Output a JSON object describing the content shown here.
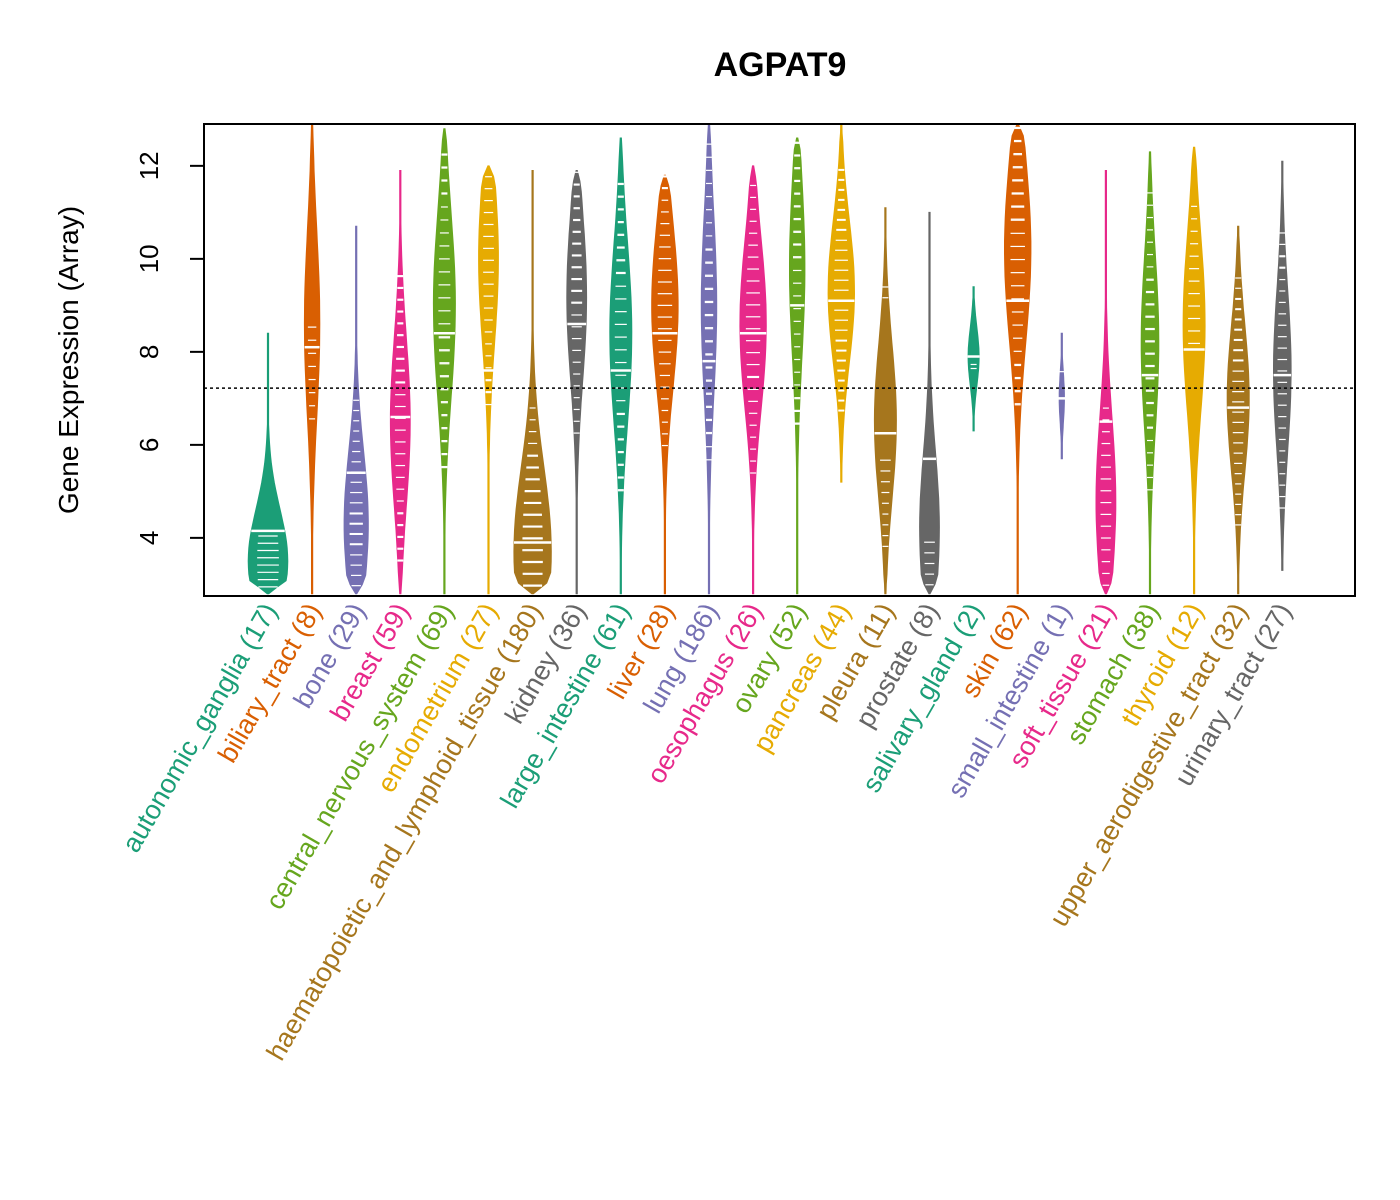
{
  "chart_data": {
    "type": "violin",
    "title": "AGPAT9",
    "xlabel": "",
    "ylabel": "Gene Expression (Array)",
    "ylim": [
      2.75,
      12.9
    ],
    "yticks": [
      4,
      6,
      8,
      10,
      12
    ],
    "reference_line": 7.22,
    "grid": false,
    "categories": [
      {
        "name": "autonomic_ganglia",
        "n": 17,
        "label": "autonomic_ganglia (17)",
        "color": "#1B9E77",
        "min": 2.8,
        "max": 8.4,
        "median": 4.15,
        "mode": 3.5,
        "width": 0.9
      },
      {
        "name": "biliary_tract",
        "n": 8,
        "label": "biliary_tract (8)",
        "color": "#D95F02",
        "min": 2.8,
        "max": 12.9,
        "median": 8.1,
        "mode": 8.6,
        "width": 0.35
      },
      {
        "name": "bone",
        "n": 29,
        "label": "bone (29)",
        "color": "#7570B3",
        "min": 2.8,
        "max": 10.7,
        "median": 5.4,
        "mode": 4.3,
        "width": 0.55
      },
      {
        "name": "breast",
        "n": 59,
        "label": "breast (59)",
        "color": "#E7298A",
        "min": 2.8,
        "max": 11.9,
        "median": 6.6,
        "mode": 6.5,
        "width": 0.45
      },
      {
        "name": "central_nervous_system",
        "n": 69,
        "label": "central_nervous_system (69)",
        "color": "#66A61E",
        "min": 2.8,
        "max": 12.8,
        "median": 8.4,
        "mode": 9.0,
        "width": 0.5
      },
      {
        "name": "endometrium",
        "n": 27,
        "label": "endometrium (27)",
        "color": "#E6AB02",
        "min": 2.8,
        "max": 12.0,
        "median": 7.6,
        "mode": 10.0,
        "width": 0.45
      },
      {
        "name": "haematopoietic_and_lymphoid_tissue",
        "n": 180,
        "label": "haematopoietic_and_lymphoid_tissue (180)",
        "color": "#A6761D",
        "min": 2.8,
        "max": 11.9,
        "median": 3.9,
        "mode": 3.7,
        "width": 0.85
      },
      {
        "name": "kidney",
        "n": 36,
        "label": "kidney (36)",
        "color": "#666666",
        "min": 2.8,
        "max": 11.9,
        "median": 8.6,
        "mode": 9.2,
        "width": 0.45
      },
      {
        "name": "large_intestine",
        "n": 61,
        "label": "large_intestine (61)",
        "color": "#1B9E77",
        "min": 2.8,
        "max": 12.6,
        "median": 7.6,
        "mode": 8.4,
        "width": 0.5
      },
      {
        "name": "liver",
        "n": 28,
        "label": "liver (28)",
        "color": "#D95F02",
        "min": 2.8,
        "max": 11.8,
        "median": 8.4,
        "mode": 9.0,
        "width": 0.6
      },
      {
        "name": "lung",
        "n": 186,
        "label": "lung (186)",
        "color": "#7570B3",
        "min": 2.8,
        "max": 12.9,
        "median": 7.8,
        "mode": 9.0,
        "width": 0.35
      },
      {
        "name": "oesophagus",
        "n": 26,
        "label": "oesophagus (26)",
        "color": "#E7298A",
        "min": 2.8,
        "max": 12.0,
        "median": 8.4,
        "mode": 8.6,
        "width": 0.6
      },
      {
        "name": "ovary",
        "n": 52,
        "label": "ovary (52)",
        "color": "#66A61E",
        "min": 2.8,
        "max": 12.6,
        "median": 9.0,
        "mode": 9.8,
        "width": 0.35
      },
      {
        "name": "pancreas",
        "n": 44,
        "label": "pancreas (44)",
        "color": "#E6AB02",
        "min": 5.2,
        "max": 12.9,
        "median": 9.1,
        "mode": 9.3,
        "width": 0.6
      },
      {
        "name": "pleura",
        "n": 11,
        "label": "pleura (11)",
        "color": "#A6761D",
        "min": 2.8,
        "max": 11.1,
        "median": 6.25,
        "mode": 6.5,
        "width": 0.5
      },
      {
        "name": "prostate",
        "n": 8,
        "label": "prostate (8)",
        "color": "#666666",
        "min": 2.8,
        "max": 11.0,
        "median": 5.7,
        "mode": 4.2,
        "width": 0.45
      },
      {
        "name": "salivary_gland",
        "n": 2,
        "label": "salivary_gland (2)",
        "color": "#1B9E77",
        "min": 6.3,
        "max": 9.4,
        "median": 7.9,
        "mode": 7.9,
        "width": 0.25
      },
      {
        "name": "skin",
        "n": 62,
        "label": "skin (62)",
        "color": "#D95F02",
        "min": 2.8,
        "max": 12.9,
        "median": 9.1,
        "mode": 10.2,
        "width": 0.6
      },
      {
        "name": "small_intestine",
        "n": 1,
        "label": "small_intestine (1)",
        "color": "#7570B3",
        "min": 5.7,
        "max": 8.4,
        "median": 7.0,
        "mode": 7.0,
        "width": 0.12
      },
      {
        "name": "soft_tissue",
        "n": 21,
        "label": "soft_tissue (21)",
        "color": "#E7298A",
        "min": 2.8,
        "max": 11.9,
        "median": 6.5,
        "mode": 4.8,
        "width": 0.45
      },
      {
        "name": "stomach",
        "n": 38,
        "label": "stomach (38)",
        "color": "#66A61E",
        "min": 2.8,
        "max": 12.3,
        "median": 7.5,
        "mode": 8.2,
        "width": 0.4
      },
      {
        "name": "thyroid",
        "n": 12,
        "label": "thyroid (12)",
        "color": "#E6AB02",
        "min": 2.8,
        "max": 12.4,
        "median": 8.05,
        "mode": 8.6,
        "width": 0.5
      },
      {
        "name": "upper_aerodigestive_tract",
        "n": 32,
        "label": "upper_aerodigestive_tract (32)",
        "color": "#A6761D",
        "min": 2.8,
        "max": 10.7,
        "median": 6.8,
        "mode": 7.0,
        "width": 0.5
      },
      {
        "name": "urinary_tract",
        "n": 27,
        "label": "urinary_tract (27)",
        "color": "#666666",
        "min": 3.3,
        "max": 12.1,
        "median": 7.5,
        "mode": 7.6,
        "width": 0.4
      }
    ]
  }
}
